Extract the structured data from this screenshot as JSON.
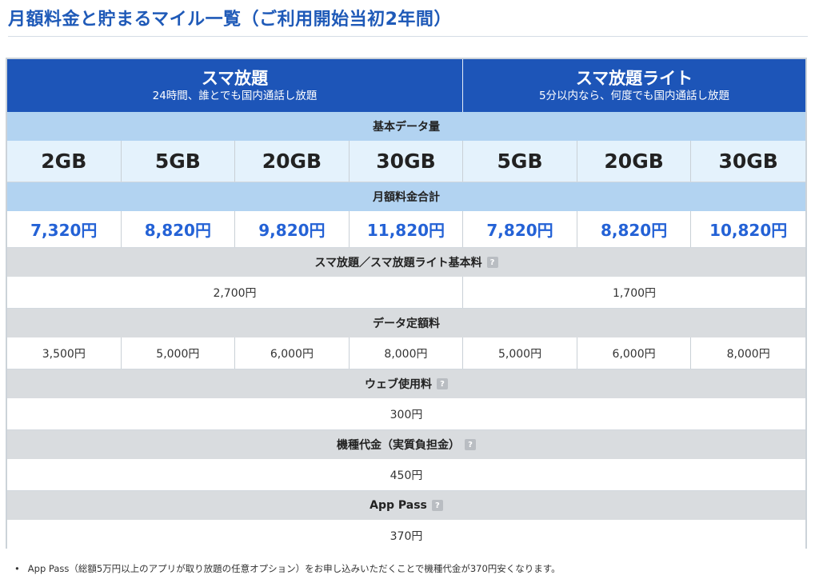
{
  "page": {
    "title": "月額料金と貯まるマイル一覧（ご利用開始当初2年間）"
  },
  "plans": [
    {
      "name": "スマ放題",
      "desc": "24時間、誰とでも国内通話し放題"
    },
    {
      "name": "スマ放題ライト",
      "desc": "5分以内なら、何度でも国内通話し放題"
    }
  ],
  "sections": {
    "data_amount": "基本データ量",
    "monthly_total": "月額料金合計",
    "basic_fee": "スマ放題／スマ放題ライト基本料",
    "data_fee": "データ定額料",
    "web_fee": "ウェブ使用料",
    "device_fee": "機種代金（実質負担金）",
    "app_pass": "App Pass"
  },
  "help_icon": "?",
  "data_amounts": [
    "2GB",
    "5GB",
    "20GB",
    "30GB",
    "5GB",
    "20GB",
    "30GB"
  ],
  "monthly_totals": [
    "7,320円",
    "8,820円",
    "9,820円",
    "11,820円",
    "7,820円",
    "8,820円",
    "10,820円"
  ],
  "basic_fees": [
    "2,700円",
    "1,700円"
  ],
  "data_fees": [
    "3,500円",
    "5,000円",
    "6,000円",
    "8,000円",
    "5,000円",
    "6,000円",
    "8,000円"
  ],
  "web_fee": "300円",
  "device_fee": "450円",
  "app_pass_fee": "370円",
  "footnote": "App Pass（総額5万円以上のアプリが取り放題の任意オプション）をお申し込みいただくことで機種代金が370円安くなります。",
  "colors": {
    "title": "#1f5ab8",
    "plan_header_bg": "#1d55b8",
    "section_blue": "#b2d3f1",
    "section_gray": "#d9dcdf",
    "gb_row_bg": "#e4f2fc",
    "price_text": "#2462d6"
  }
}
